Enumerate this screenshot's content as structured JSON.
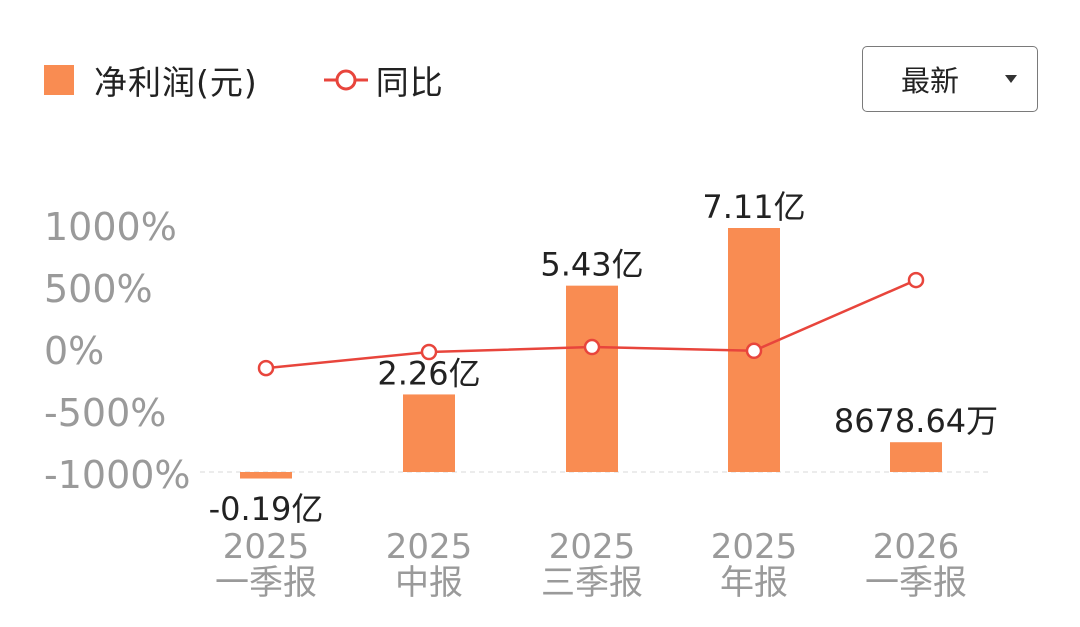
{
  "legend": {
    "bar_label": "净利润(元)",
    "line_label": "同比"
  },
  "dropdown": {
    "selected": "最新"
  },
  "colors": {
    "bar": "#F98C52",
    "line": "#E8453C",
    "axis_text": "#9a9a9a",
    "label_text": "#222222"
  },
  "chart_data": {
    "type": "bar",
    "categories": [
      [
        "2025",
        "一季报"
      ],
      [
        "2025",
        "中报"
      ],
      [
        "2025",
        "三季报"
      ],
      [
        "2025",
        "年报"
      ],
      [
        "2026",
        "一季报"
      ]
    ],
    "series": [
      {
        "name": "净利润(元)",
        "type": "bar",
        "values": [
          -19000000,
          226000000,
          543000000,
          711000000,
          86786400
        ],
        "labels": [
          "-0.19亿",
          "2.26亿",
          "5.43亿",
          "7.11亿",
          "8678.64万"
        ]
      },
      {
        "name": "同比",
        "type": "line",
        "values": [
          -130,
          0,
          40,
          10,
          580
        ]
      }
    ],
    "y_ticks": [
      "1000%",
      "500%",
      "0%",
      "-500%",
      "-1000%"
    ],
    "ylim_pct": [
      -1000,
      1000
    ],
    "grid": false,
    "legend_position": "top-left"
  }
}
